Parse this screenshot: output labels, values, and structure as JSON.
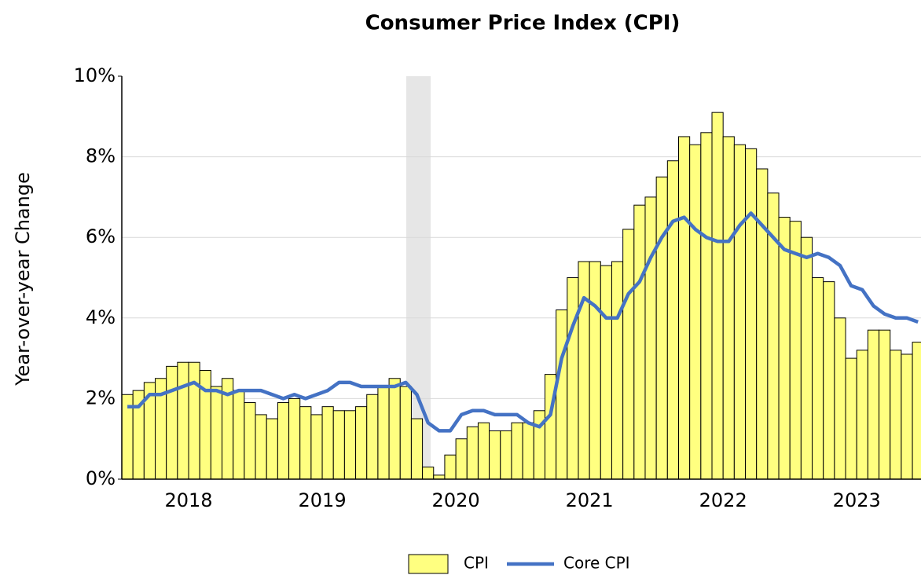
{
  "chart_data": {
    "type": "bar_line",
    "title": "Consumer Price Index (CPI)",
    "y_label": "Year-over-year Change",
    "categories": [
      null,
      null,
      null,
      null,
      null,
      null,
      "2018",
      null,
      null,
      null,
      null,
      null,
      null,
      null,
      null,
      null,
      null,
      null,
      "2019",
      null,
      null,
      null,
      null,
      null,
      null,
      null,
      null,
      null,
      null,
      null,
      "2020",
      null,
      null,
      null,
      null,
      null,
      null,
      null,
      null,
      null,
      null,
      null,
      "2021",
      null,
      null,
      null,
      null,
      null,
      null,
      null,
      null,
      null,
      null,
      null,
      "2022",
      null,
      null,
      null,
      null,
      null,
      null,
      null,
      null,
      null,
      null,
      null,
      "2023",
      null,
      null,
      null,
      null,
      null
    ],
    "series": [
      {
        "name": "CPI",
        "kind": "bar",
        "color": "#ffff80",
        "values": [
          2.1,
          2.2,
          2.4,
          2.5,
          2.8,
          2.9,
          2.9,
          2.7,
          2.3,
          2.5,
          2.2,
          1.9,
          1.6,
          1.5,
          1.9,
          2.0,
          1.8,
          1.6,
          1.8,
          1.7,
          1.7,
          1.8,
          2.1,
          2.3,
          2.5,
          2.3,
          1.5,
          0.3,
          0.1,
          0.6,
          1.0,
          1.3,
          1.4,
          1.2,
          1.2,
          1.4,
          1.4,
          1.7,
          2.6,
          4.2,
          5.0,
          5.4,
          5.4,
          5.3,
          5.4,
          6.2,
          6.8,
          7.0,
          7.5,
          7.9,
          8.5,
          8.3,
          8.6,
          9.1,
          8.5,
          8.3,
          8.2,
          7.7,
          7.1,
          6.5,
          6.4,
          6.0,
          5.0,
          4.9,
          4.0,
          3.0,
          3.2,
          3.7,
          3.7,
          3.2,
          3.1,
          3.4
        ]
      },
      {
        "name": "Core CPI",
        "kind": "line",
        "color": "#4472c4",
        "values": [
          1.8,
          1.8,
          2.1,
          2.1,
          2.2,
          2.3,
          2.4,
          2.2,
          2.2,
          2.1,
          2.2,
          2.2,
          2.2,
          2.1,
          2.0,
          2.1,
          2.0,
          2.1,
          2.2,
          2.4,
          2.4,
          2.3,
          2.3,
          2.3,
          2.3,
          2.4,
          2.1,
          1.4,
          1.2,
          1.2,
          1.6,
          1.7,
          1.7,
          1.6,
          1.6,
          1.6,
          1.4,
          1.3,
          1.6,
          3.0,
          3.8,
          4.5,
          4.3,
          4.0,
          4.0,
          4.6,
          4.9,
          5.5,
          6.0,
          6.4,
          6.5,
          6.2,
          6.0,
          5.9,
          5.9,
          6.3,
          6.6,
          6.3,
          6.0,
          5.7,
          5.6,
          5.5,
          5.6,
          5.5,
          5.3,
          4.8,
          4.7,
          4.3,
          4.1,
          4.0,
          4.0,
          3.9
        ]
      }
    ],
    "ylim": [
      0,
      10
    ],
    "yticks": [
      {
        "value": 0,
        "label": "0%"
      },
      {
        "value": 2,
        "label": "2%"
      },
      {
        "value": 4,
        "label": "4%"
      },
      {
        "value": 6,
        "label": "6%"
      },
      {
        "value": 8,
        "label": "8%"
      },
      {
        "value": 10,
        "label": "10%"
      }
    ],
    "grid": true,
    "legend": "bottom"
  }
}
